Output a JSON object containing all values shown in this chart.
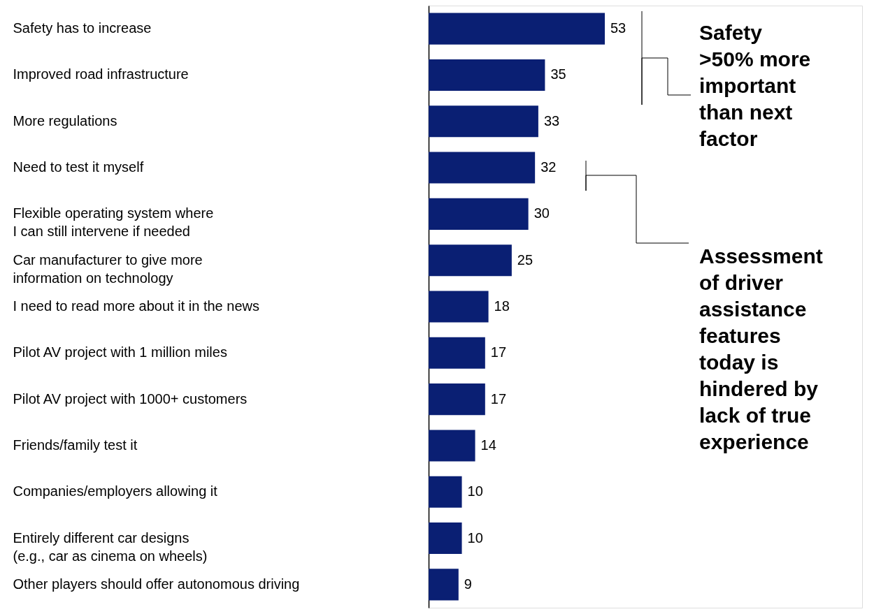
{
  "chart_data": {
    "type": "bar",
    "orientation": "horizontal",
    "data_labels": true,
    "grid": false,
    "tick_labels": "y",
    "categories": [
      "Safety has to increase",
      "Improved road infrastructure",
      "More regulations",
      "Need to test it myself",
      "Flexible operating system where\nI can still intervene if needed",
      "Car manufacturer to give more\ninformation on technology",
      "I need to read more about it in the news",
      "Pilot AV project with 1 million miles",
      "Pilot AV project with 1000+ customers",
      "Friends/family test it",
      "Companies/employers allowing it",
      "Entirely different car designs\n(e.g., car as cinema on wheels)",
      "Other players should offer autonomous driving"
    ],
    "values": [
      53,
      35,
      33,
      32,
      30,
      25,
      18,
      17,
      17,
      14,
      10,
      10,
      9
    ],
    "color": "#0a1f73",
    "annotations": [
      "Safety\n>50% more\nimportant\nthan next\nfactor",
      "Assessment\nof driver\nassistance\nfeatures\ntoday is\nhindered by\nlack of true\nexperience"
    ]
  }
}
